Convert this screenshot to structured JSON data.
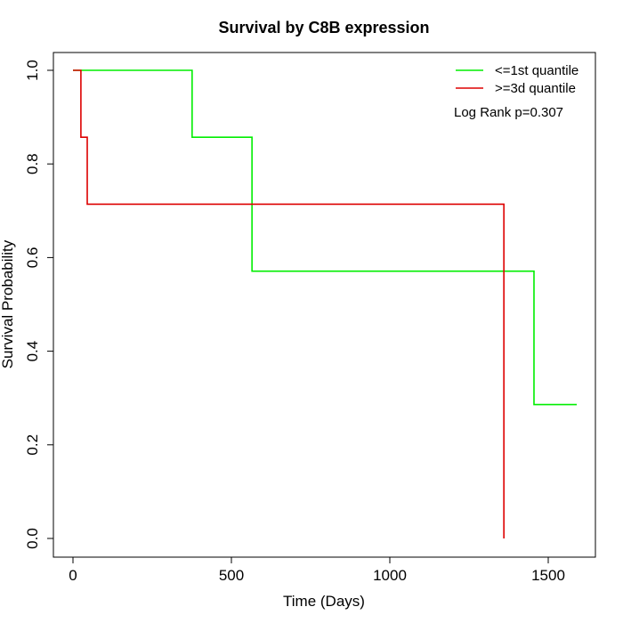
{
  "chart_data": {
    "type": "line",
    "subtype": "kaplan-meier step",
    "title": "Survival by C8B expression",
    "xlabel": "Time (Days)",
    "ylabel": "Survival Probability",
    "xlim": [
      0,
      1650
    ],
    "ylim": [
      0,
      1.0
    ],
    "xticks": [
      0,
      500,
      1000,
      1500
    ],
    "xtick_labels": [
      "0",
      "500",
      "1000",
      "1500"
    ],
    "yticks": [
      0.0,
      0.2,
      0.4,
      0.6,
      0.8,
      1.0
    ],
    "ytick_labels": [
      "0.0",
      "0.2",
      "0.4",
      "0.6",
      "0.8",
      "1.0"
    ],
    "grid": false,
    "legend_position": "top-right",
    "series": [
      {
        "name": "<=1st quantile",
        "color": "#00ee00",
        "x": [
          0,
          376,
          565,
          1455,
          1590
        ],
        "y": [
          1.0,
          0.857,
          0.571,
          0.286,
          0.286
        ]
      },
      {
        "name": ">=3d quantile",
        "color": "#dd0000",
        "x": [
          0,
          25,
          45,
          1360
        ],
        "y": [
          1.0,
          0.857,
          0.714,
          0.0
        ]
      }
    ],
    "annotations": [
      "Log Rank p=0.307"
    ]
  }
}
